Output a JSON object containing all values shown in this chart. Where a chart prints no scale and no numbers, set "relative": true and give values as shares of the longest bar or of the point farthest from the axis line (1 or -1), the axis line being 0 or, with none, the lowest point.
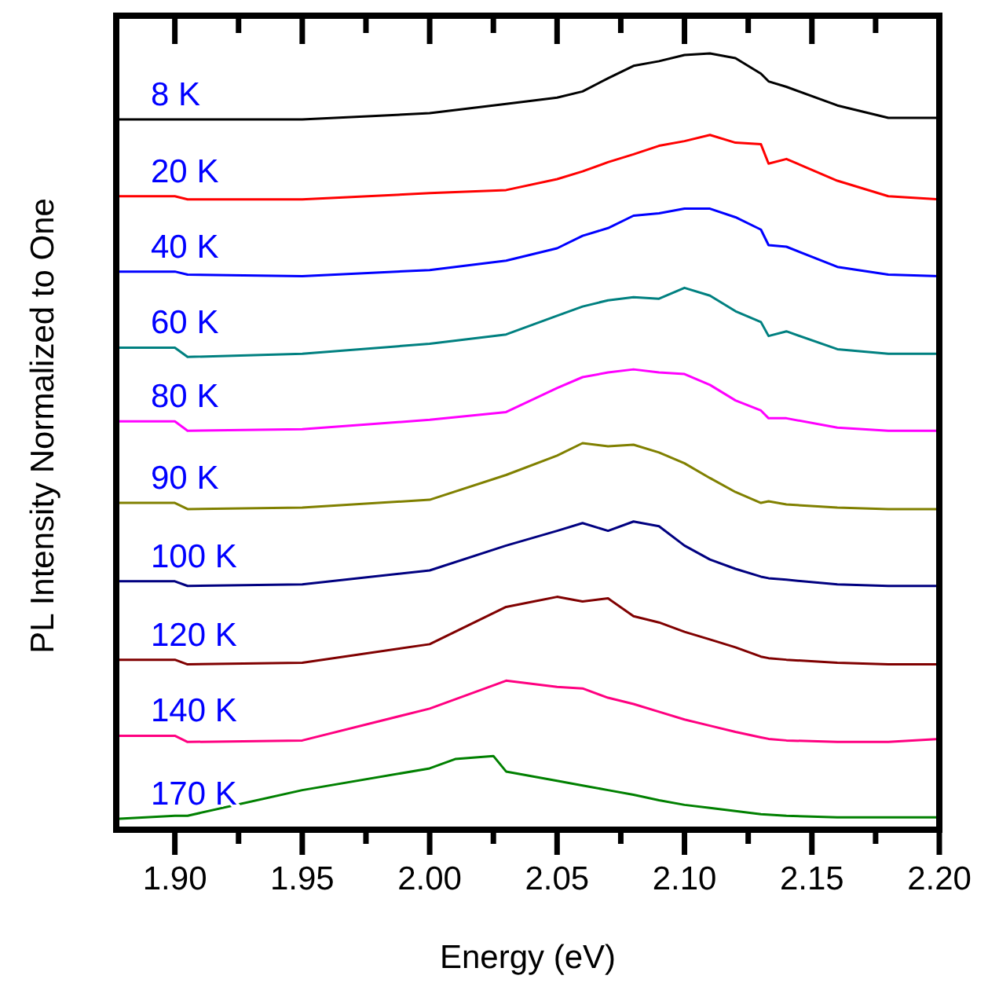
{
  "chart_data": {
    "type": "line",
    "relative": true,
    "xlabel": "Energy (eV)",
    "ylabel": "PL Intensity Normalized to One",
    "xlim": [
      1.877,
      2.2
    ],
    "xticks": [
      {
        "value": 1.9,
        "label": "1.90"
      },
      {
        "value": 1.925,
        "label": null
      },
      {
        "value": 1.95,
        "label": "1.95"
      },
      {
        "value": 1.975,
        "label": null
      },
      {
        "value": 2.0,
        "label": "2.00"
      },
      {
        "value": 2.025,
        "label": null
      },
      {
        "value": 2.05,
        "label": "2.05"
      },
      {
        "value": 2.075,
        "label": null
      },
      {
        "value": 2.1,
        "label": "2.10"
      },
      {
        "value": 2.125,
        "label": null
      },
      {
        "value": 2.15,
        "label": "2.15"
      },
      {
        "value": 2.175,
        "label": null
      },
      {
        "value": 2.2,
        "label": "2.20"
      }
    ],
    "x": [
      1.877,
      1.9,
      1.905,
      1.95,
      2.0,
      2.03,
      2.05,
      2.06,
      2.07,
      2.08,
      2.09,
      2.1,
      2.11,
      2.12,
      2.13,
      2.133,
      2.14,
      2.16,
      2.18,
      2.2
    ],
    "grid": false,
    "legend": "left",
    "marker": "none",
    "line_style": "solid",
    "series": [
      {
        "name": "8 K",
        "color": "#000000",
        "values": [
          0.915,
          0.915,
          0.915,
          0.915,
          0.923,
          0.935,
          0.943,
          0.951,
          0.968,
          0.984,
          0.99,
          0.998,
          1.0,
          0.994,
          0.974,
          0.964,
          0.957,
          0.933,
          0.917,
          0.917
        ]
      },
      {
        "name": "20 K",
        "color": "#ff0000",
        "values": [
          0.816,
          0.816,
          0.812,
          0.812,
          0.82,
          0.824,
          0.838,
          0.848,
          0.86,
          0.87,
          0.881,
          0.887,
          0.895,
          0.885,
          0.883,
          0.858,
          0.864,
          0.836,
          0.816,
          0.812
        ]
      },
      {
        "name": "40 K",
        "color": "#0000ff",
        "values": [
          0.719,
          0.719,
          0.715,
          0.713,
          0.721,
          0.733,
          0.749,
          0.765,
          0.775,
          0.791,
          0.794,
          0.8,
          0.8,
          0.789,
          0.773,
          0.753,
          0.751,
          0.725,
          0.715,
          0.713
        ]
      },
      {
        "name": "60 K",
        "color": "#008080",
        "values": [
          0.621,
          0.621,
          0.609,
          0.613,
          0.626,
          0.638,
          0.662,
          0.674,
          0.682,
          0.686,
          0.684,
          0.698,
          0.688,
          0.668,
          0.654,
          0.636,
          0.642,
          0.619,
          0.613,
          0.613
        ]
      },
      {
        "name": "80 K",
        "color": "#ff00ff",
        "values": [
          0.526,
          0.526,
          0.514,
          0.516,
          0.528,
          0.538,
          0.569,
          0.583,
          0.589,
          0.593,
          0.589,
          0.587,
          0.573,
          0.553,
          0.54,
          0.53,
          0.53,
          0.518,
          0.514,
          0.514
        ]
      },
      {
        "name": "90 K",
        "color": "#808000",
        "values": [
          0.421,
          0.421,
          0.413,
          0.415,
          0.425,
          0.457,
          0.482,
          0.498,
          0.494,
          0.496,
          0.486,
          0.472,
          0.453,
          0.435,
          0.421,
          0.423,
          0.419,
          0.415,
          0.413,
          0.413
        ]
      },
      {
        "name": "100 K",
        "color": "#000080",
        "values": [
          0.32,
          0.32,
          0.314,
          0.316,
          0.334,
          0.366,
          0.385,
          0.395,
          0.385,
          0.397,
          0.391,
          0.366,
          0.348,
          0.336,
          0.326,
          0.324,
          0.322,
          0.316,
          0.314,
          0.314
        ]
      },
      {
        "name": "120 K",
        "color": "#800000",
        "values": [
          0.219,
          0.219,
          0.213,
          0.215,
          0.239,
          0.287,
          0.3,
          0.294,
          0.298,
          0.275,
          0.267,
          0.255,
          0.245,
          0.235,
          0.223,
          0.221,
          0.219,
          0.215,
          0.213,
          0.213
        ]
      },
      {
        "name": "140 K",
        "color": "#ff0080",
        "values": [
          0.121,
          0.121,
          0.113,
          0.115,
          0.156,
          0.192,
          0.184,
          0.182,
          0.17,
          0.162,
          0.152,
          0.142,
          0.134,
          0.126,
          0.119,
          0.117,
          0.115,
          0.113,
          0.113,
          0.117
        ]
      },
      {
        "name": "170 K",
        "color": "#008000",
        "x": [
          1.877,
          1.9,
          1.905,
          1.95,
          2.0,
          2.01,
          2.025,
          2.03,
          2.05,
          2.06,
          2.07,
          2.08,
          2.09,
          2.1,
          2.11,
          2.12,
          2.13,
          2.14,
          2.16,
          2.18,
          2.2
        ],
        "values": [
          0.014,
          0.018,
          0.018,
          0.051,
          0.079,
          0.091,
          0.095,
          0.075,
          0.063,
          0.057,
          0.051,
          0.045,
          0.038,
          0.032,
          0.028,
          0.024,
          0.02,
          0.018,
          0.016,
          0.016,
          0.016
        ]
      }
    ]
  }
}
